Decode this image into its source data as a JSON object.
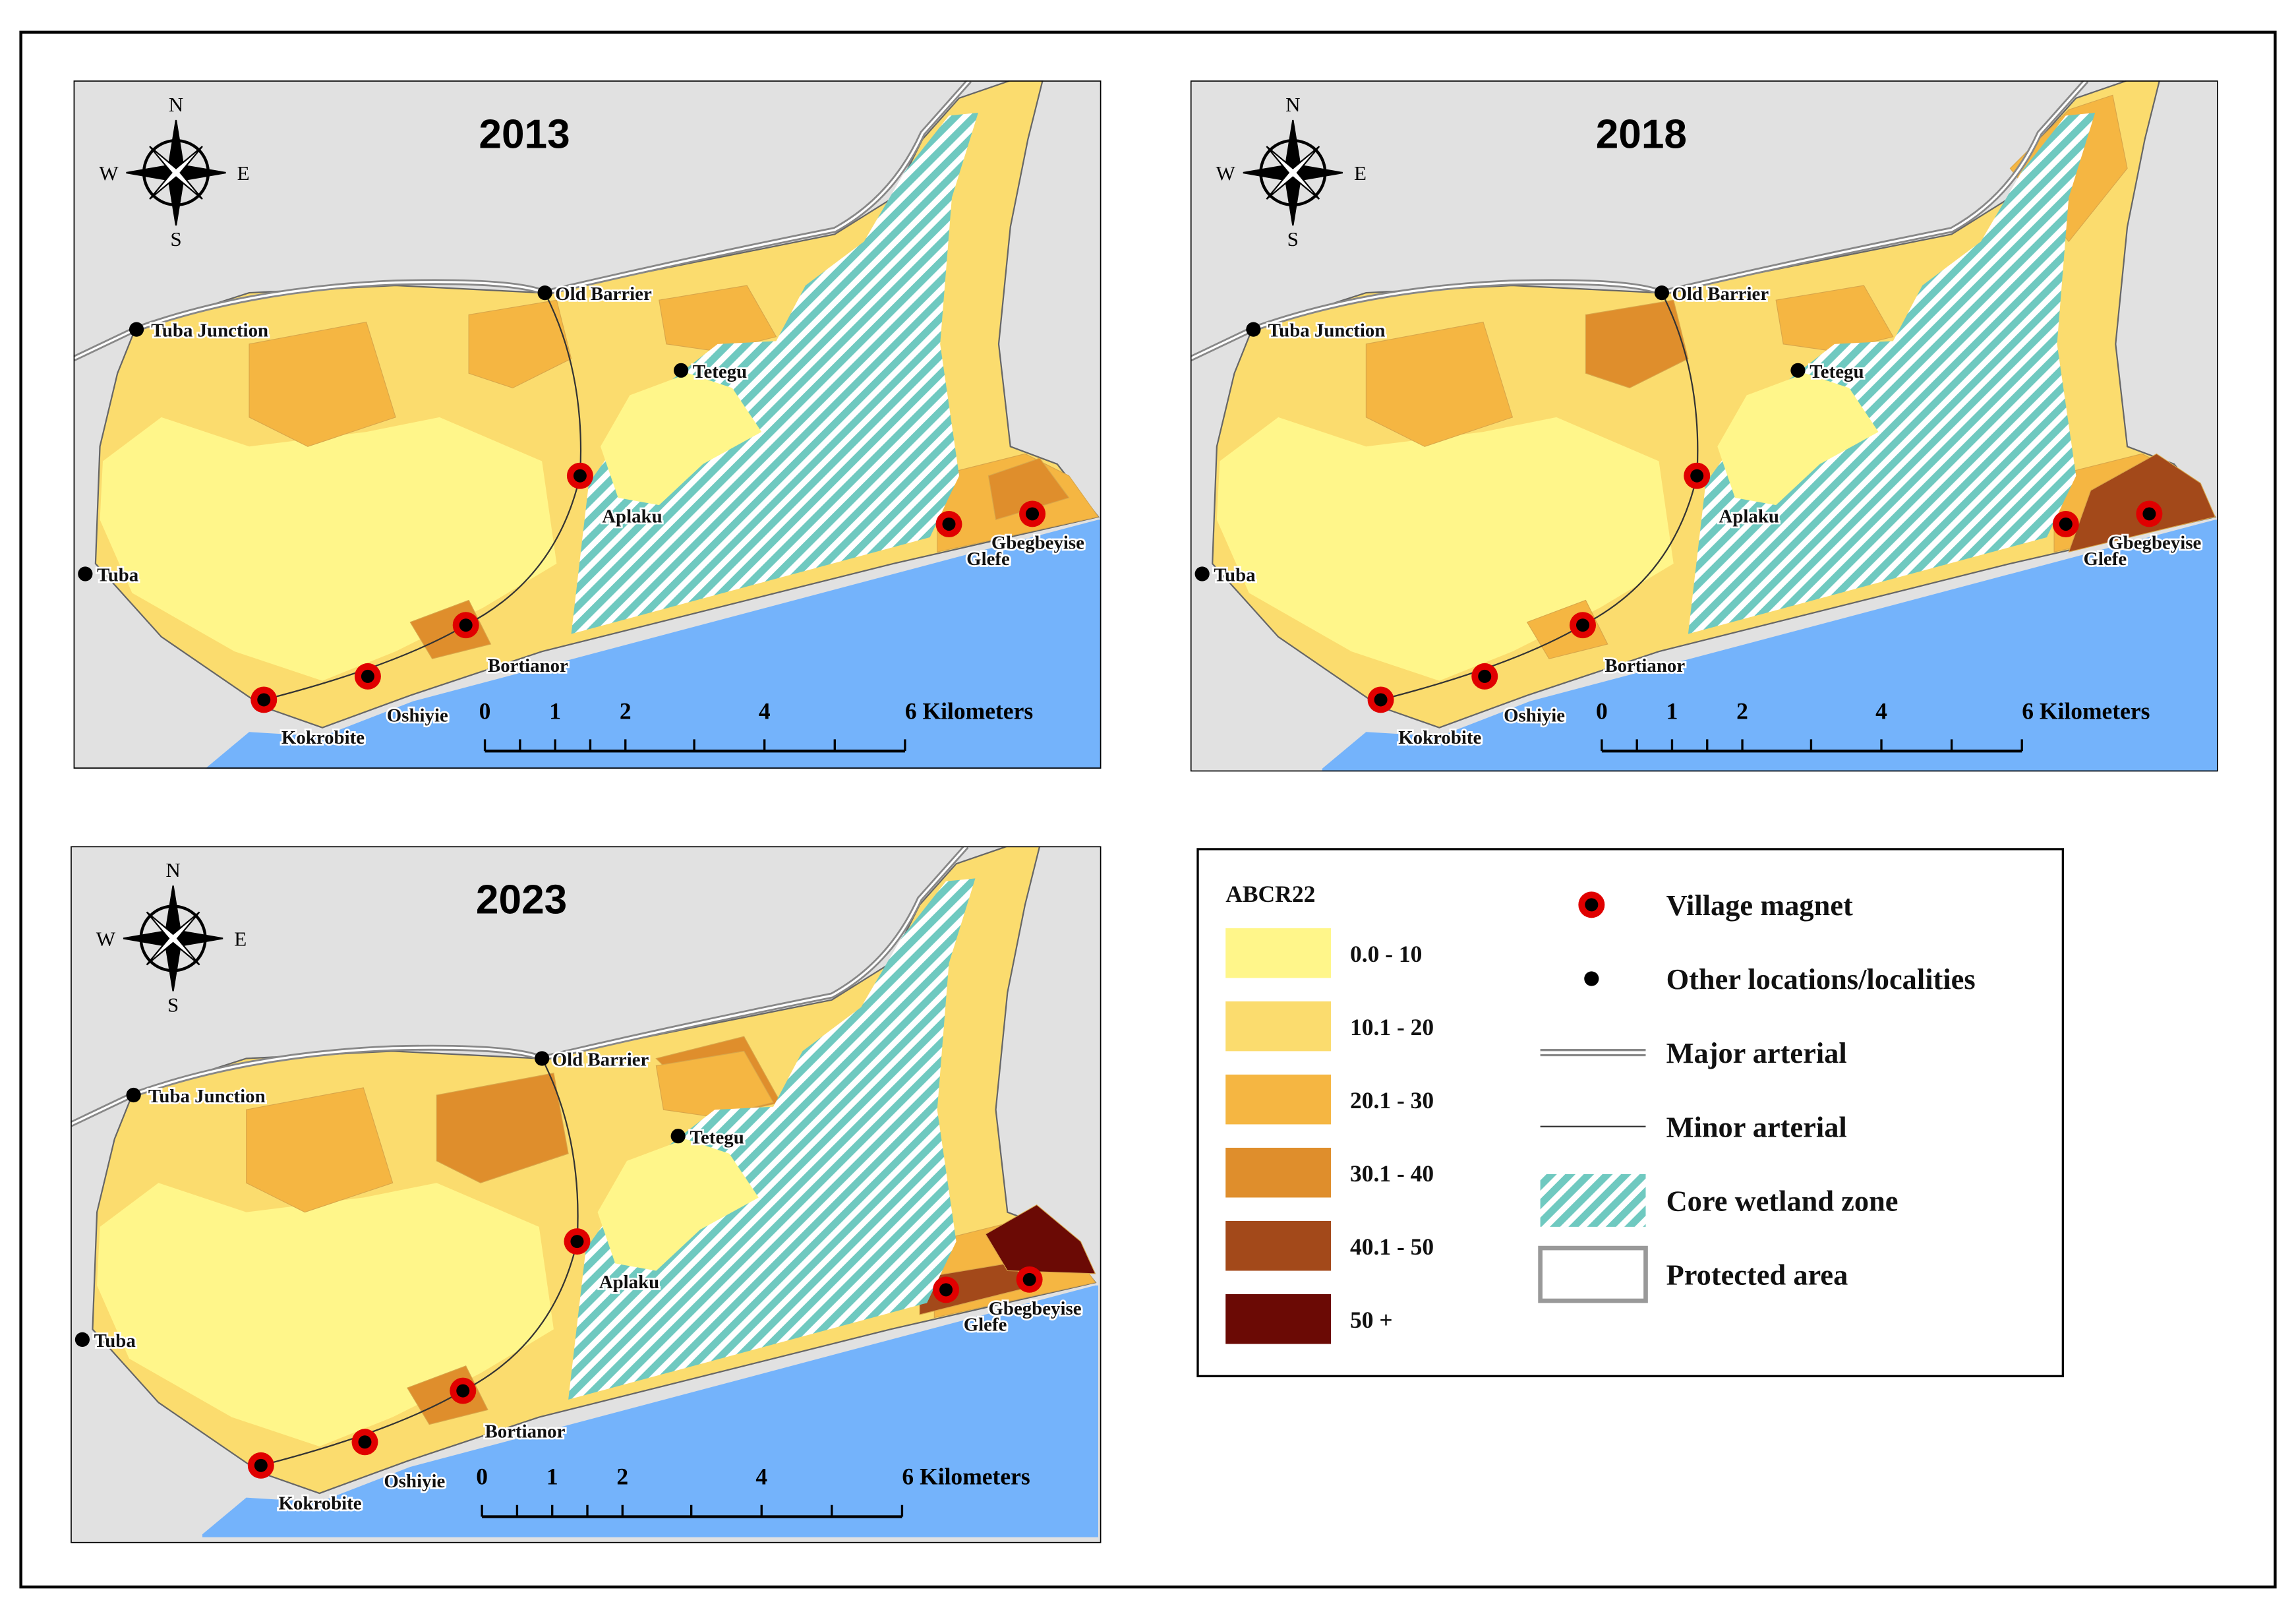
{
  "maps": [
    {
      "title": "2013"
    },
    {
      "title": "2018"
    },
    {
      "title": "2023"
    }
  ],
  "compass": {
    "north": "N",
    "south": "S",
    "west": "W",
    "east": "E"
  },
  "places": [
    {
      "label": "Tuba Junction",
      "kind": "other"
    },
    {
      "label": "Old Barrier",
      "kind": "other"
    },
    {
      "label": "Tetegu",
      "kind": "other"
    },
    {
      "label": "Aplaku",
      "kind": "village"
    },
    {
      "label": "Tuba",
      "kind": "other"
    },
    {
      "label": "Bortianor",
      "kind": "village"
    },
    {
      "label": "Oshiyie",
      "kind": "village"
    },
    {
      "label": "Kokrobite",
      "kind": "village"
    },
    {
      "label": "Glefe",
      "kind": "village"
    },
    {
      "label": "Gbegbeyise",
      "kind": "village"
    }
  ],
  "scale_bar": {
    "labels": [
      "0",
      "1",
      "2",
      "4",
      "6 Kilometers"
    ]
  },
  "legend": {
    "title": "ABCR22",
    "classes": [
      {
        "label": "0.0 - 10",
        "color": "#fff68a"
      },
      {
        "label": "10.1 - 20",
        "color": "#fbdc6e"
      },
      {
        "label": "20.1 - 30",
        "color": "#f5b642"
      },
      {
        "label": "30.1 - 40",
        "color": "#df8e2c"
      },
      {
        "label": "40.1 - 50",
        "color": "#a3491a"
      },
      {
        "label": "50 +",
        "color": "#6b0a05"
      }
    ],
    "symbols": [
      "Village magnet",
      "Other locations/localities",
      "Major arterial",
      "Minor arterial",
      "Core wetland zone",
      "Protected area"
    ]
  }
}
